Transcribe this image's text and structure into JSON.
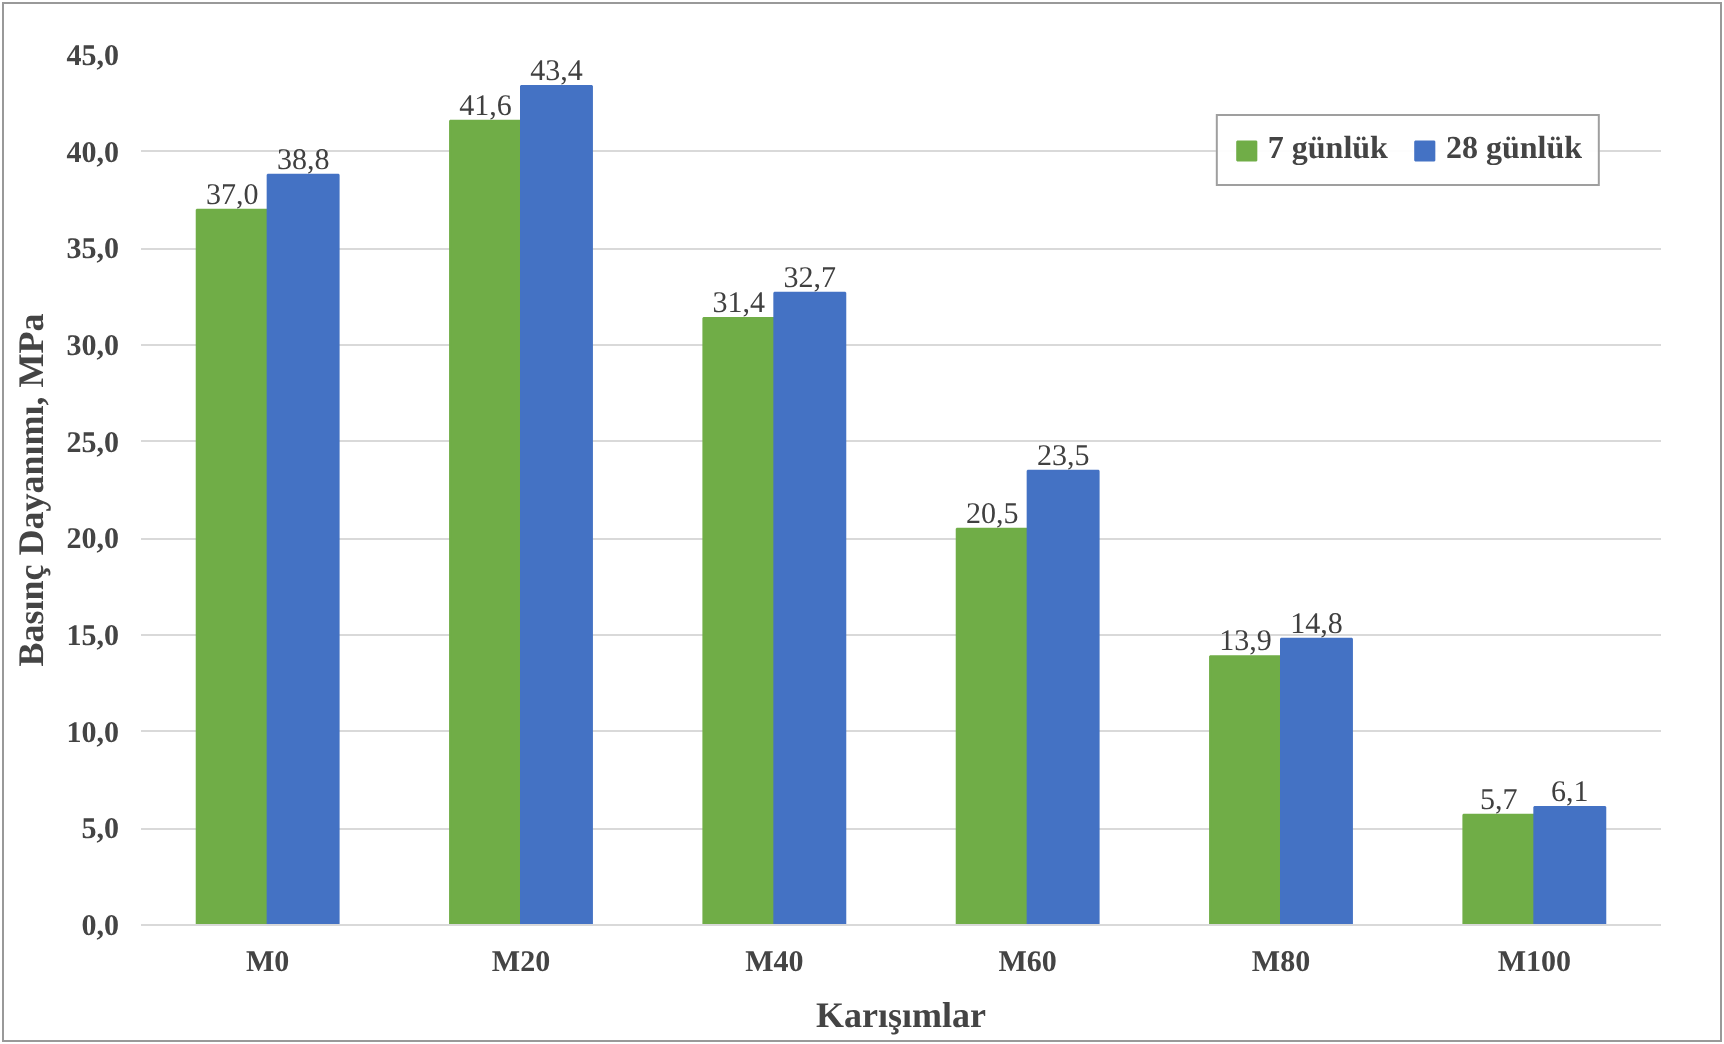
{
  "chart_data": {
    "type": "bar",
    "xlabel": "Karışımlar",
    "ylabel": "Basınç Dayanımı, MPa",
    "categories": [
      "M0",
      "M20",
      "M40",
      "M60",
      "M80",
      "M100"
    ],
    "series": [
      {
        "name": "7 günlük",
        "color": "#70ad47",
        "values": [
          37.0,
          41.6,
          31.4,
          20.5,
          13.9,
          5.7
        ],
        "value_labels": [
          "37,0",
          "41,6",
          "31,4",
          "20,5",
          "13,9",
          "5,7"
        ]
      },
      {
        "name": "28 günlük",
        "color": "#4472c4",
        "values": [
          38.8,
          43.4,
          32.7,
          23.5,
          14.8,
          6.1
        ],
        "value_labels": [
          "38,8",
          "43,4",
          "32,7",
          "23,5",
          "14,8",
          "6,1"
        ]
      }
    ],
    "ylim": [
      0,
      45
    ],
    "yticks": [
      {
        "value": 0,
        "label": "0,0"
      },
      {
        "value": 5,
        "label": "5,0"
      },
      {
        "value": 10,
        "label": "10,0"
      },
      {
        "value": 15,
        "label": "15,0"
      },
      {
        "value": 20,
        "label": "20,0"
      },
      {
        "value": 25,
        "label": "25,0"
      },
      {
        "value": 30,
        "label": "30,0"
      },
      {
        "value": 35,
        "label": "35,0"
      },
      {
        "value": 40,
        "label": "40,0"
      },
      {
        "value": 45,
        "label": "45,0"
      }
    ],
    "grid": "y",
    "legend": "top right"
  }
}
